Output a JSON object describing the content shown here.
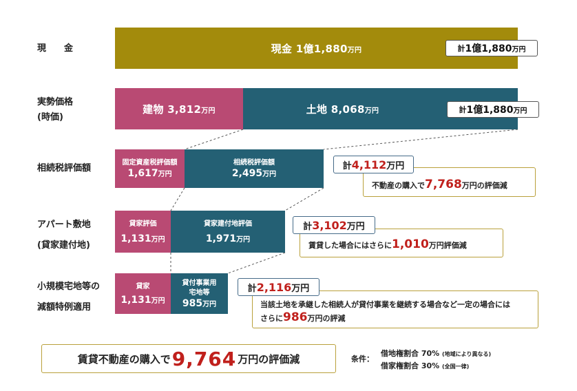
{
  "rows": {
    "cash": "現　　金",
    "market_line1": "実勢価格",
    "market_line2": "(時価)",
    "inherit": "相続税評価額",
    "apart_line1": "アパート敷地",
    "apart_line2": "(貸家建付地)",
    "small_line1": "小規模宅地等の",
    "small_line2": "減額特例適用"
  },
  "bars": {
    "cash": {
      "label": "現金",
      "value": "1億1,880",
      "unit": "万円"
    },
    "building": {
      "label": "建物",
      "value": "3,812",
      "unit": "万円"
    },
    "land": {
      "label": "土地",
      "value": "8,068",
      "unit": "万円"
    },
    "fixed_asset": {
      "label": "固定資産税評価額",
      "value": "1,617",
      "unit": "万円"
    },
    "inherit_tax": {
      "label": "相続税評価額",
      "value": "2,495",
      "unit": "万円"
    },
    "rental_eval_1": {
      "label": "貸家評価",
      "value": "1,131",
      "unit": "万円"
    },
    "rental_land": {
      "label": "貸家建付地評価",
      "value": "1,971",
      "unit": "万円"
    },
    "rental_eval_2": {
      "label": "貸家",
      "value": "1,131",
      "unit": "万円"
    },
    "business_land_line1": "貸付事業用",
    "business_land_line2": "宅地等",
    "business_land": {
      "value": "985",
      "unit": "万円"
    }
  },
  "totals": {
    "prefix": "計",
    "unit": "万円",
    "cash": "1億1,880",
    "market": "1億1,880",
    "inherit": "4,112",
    "apart": "3,102",
    "small": "2,116"
  },
  "notes": {
    "inherit_pre": "不動産の購入で",
    "inherit_num": "7,768",
    "inherit_post": "万円の評価減",
    "apart_pre": "賃貸した場合にはさらに",
    "apart_num": "1,010",
    "apart_post": "万円評価減",
    "small_line1": "当該土地を承継した相続人が貸付事業を継続する場合など一定の場合には",
    "small_pre": "さらに",
    "small_num": "986",
    "small_post": "万円の評減"
  },
  "summary": {
    "pre": "賃貸不動産の購入で",
    "num": "9,764",
    "post": "万円の評価減"
  },
  "conditions": {
    "label": "条件：",
    "line1": "借地権割合 70%",
    "line1_note": "(地域により異なる)",
    "line2": "借家権割合 30%",
    "line2_note": "(全国一律)"
  },
  "colors": {
    "cash": "#a38b0c",
    "building_rental": "#b94a73",
    "land": "#246074",
    "emphasis": "#c0201c"
  },
  "chart_data": {
    "type": "bar",
    "orientation": "horizontal-stacked",
    "unit": "万円",
    "categories": [
      "現金",
      "実勢価格(時価)",
      "相続税評価額",
      "アパート敷地(貸家建付地)",
      "小規模宅地等の減額特例適用"
    ],
    "series": [
      {
        "name": "現金",
        "values": [
          11880,
          0,
          0,
          0,
          0
        ]
      },
      {
        "name": "建物",
        "values": [
          0,
          3812,
          1617,
          1131,
          1131
        ]
      },
      {
        "name": "土地",
        "values": [
          0,
          8068,
          2495,
          1971,
          985
        ]
      }
    ],
    "totals": [
      11880,
      11880,
      4112,
      3102,
      2116
    ],
    "reductions": {
      "相続税評価額": 7768,
      "アパート敷地": 1010,
      "小規模宅地等": 986,
      "total": 9764
    }
  }
}
